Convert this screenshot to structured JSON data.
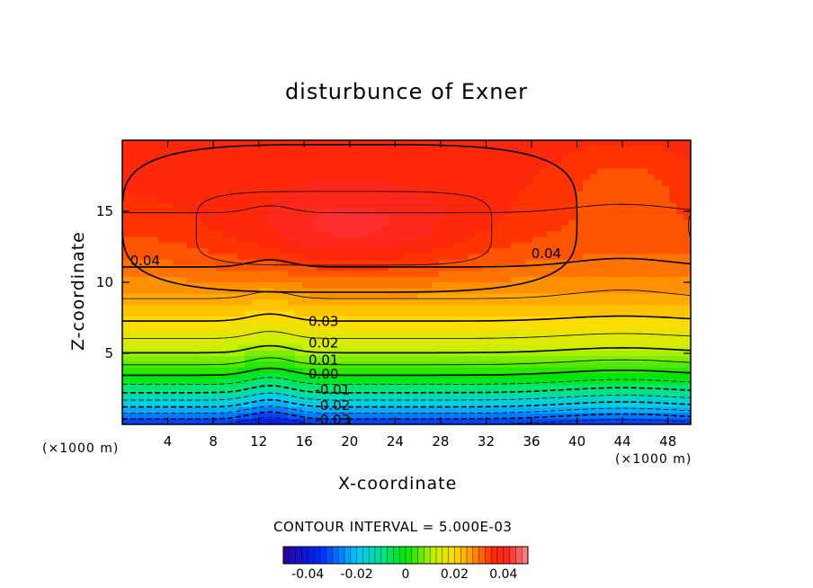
{
  "chart_data": {
    "type": "contour",
    "title": "disturbunce of Exner",
    "xlabel": "X-coordinate",
    "ylabel": "Z-coordinate",
    "x_unit_label": "(×1000 m)",
    "xlim": [
      0,
      50
    ],
    "ylim": [
      0,
      20
    ],
    "x_ticks": [
      4,
      8,
      12,
      16,
      20,
      24,
      28,
      32,
      36,
      40,
      44,
      48
    ],
    "y_ticks": [
      5,
      10,
      15
    ],
    "contour_interval_label": "CONTOUR INTERVAL = 5.000E-03",
    "contour_labels": [
      {
        "text": "0.04",
        "x": 2,
        "z": 11.5
      },
      {
        "text": "0.04",
        "x": 37.3,
        "z": 12
      },
      {
        "text": "0.03",
        "x": 17.7,
        "z": 7.2
      },
      {
        "text": "0.02",
        "x": 17.7,
        "z": 5.7
      },
      {
        "text": "0.01",
        "x": 17.7,
        "z": 4.5
      },
      {
        "text": "0.00",
        "x": 17.7,
        "z": 3.5
      },
      {
        "text": "-0.01",
        "x": 18.5,
        "z": 2.4
      },
      {
        "text": "-0.02",
        "x": 18.5,
        "z": 1.3
      },
      {
        "text": "-0.03",
        "x": 18.5,
        "z": 0.3
      }
    ],
    "colorbar": {
      "range": [
        -0.05,
        0.05
      ],
      "tick_labels": [
        "-0.04",
        "-0.02",
        "0",
        "0.02",
        "0.04"
      ],
      "tick_values": [
        -0.04,
        -0.02,
        0,
        0.02,
        0.04
      ]
    },
    "field_description_values": {
      "max_core_center": {
        "x": 20,
        "z": 13.5,
        "value": 0.05
      },
      "bottom_value": -0.035
    }
  }
}
